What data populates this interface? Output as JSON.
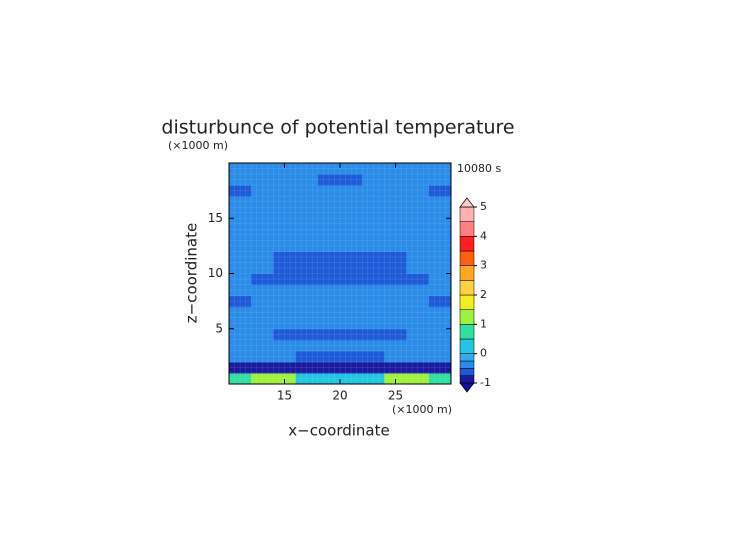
{
  "chart_data": {
    "type": "contour",
    "title": "disturbunce of potential temperature",
    "time_label": "10080 s",
    "x_label": "x−coordinate",
    "y_label": "z−coordinate",
    "x_unit": "(×1000 m)",
    "y_unit": "(×1000 m)",
    "xlim": [
      10,
      30
    ],
    "ylim": [
      0,
      20
    ],
    "xticks": [
      15,
      20,
      25
    ],
    "yticks": [
      5,
      10,
      15
    ],
    "grid": true,
    "z": [
      [
        0.8,
        1.2,
        1.0,
        0.3,
        0.2,
        0.3,
        0.4,
        1.2,
        1.0,
        0.8
      ],
      [
        -0.8,
        -0.8,
        -0.8,
        -0.8,
        -0.8,
        -0.8,
        -0.8,
        -0.8,
        -0.8,
        -0.8
      ],
      [
        -0.4,
        -0.4,
        -0.4,
        -0.55,
        -0.55,
        -0.55,
        -0.55,
        -0.4,
        -0.4,
        -0.4
      ],
      [
        -0.4,
        -0.4,
        -0.4,
        -0.4,
        -0.4,
        -0.4,
        -0.4,
        -0.4,
        -0.4,
        -0.4
      ],
      [
        -0.4,
        -0.4,
        -0.55,
        -0.55,
        -0.55,
        -0.55,
        -0.55,
        -0.55,
        -0.4,
        -0.4
      ],
      [
        -0.3,
        -0.3,
        -0.3,
        -0.3,
        -0.3,
        -0.3,
        -0.3,
        -0.3,
        -0.3,
        -0.3
      ],
      [
        -0.3,
        -0.3,
        -0.3,
        -0.3,
        -0.3,
        -0.3,
        -0.3,
        -0.3,
        -0.3,
        -0.3
      ],
      [
        -0.55,
        -0.3,
        -0.3,
        -0.3,
        -0.3,
        -0.3,
        -0.3,
        -0.3,
        -0.3,
        -0.55
      ],
      [
        -0.3,
        -0.3,
        -0.3,
        -0.3,
        -0.3,
        -0.3,
        -0.3,
        -0.3,
        -0.3,
        -0.3
      ],
      [
        -0.4,
        -0.55,
        -0.55,
        -0.55,
        -0.55,
        -0.55,
        -0.55,
        -0.55,
        -0.55,
        -0.4
      ],
      [
        -0.4,
        -0.4,
        -0.55,
        -0.55,
        -0.55,
        -0.55,
        -0.55,
        -0.55,
        -0.4,
        -0.4
      ],
      [
        -0.3,
        -0.4,
        -0.55,
        -0.55,
        -0.55,
        -0.55,
        -0.55,
        -0.55,
        -0.4,
        -0.3
      ],
      [
        -0.3,
        -0.3,
        -0.4,
        -0.4,
        -0.4,
        -0.4,
        -0.4,
        -0.4,
        -0.3,
        -0.3
      ],
      [
        -0.3,
        -0.3,
        -0.3,
        -0.3,
        -0.3,
        -0.3,
        -0.3,
        -0.3,
        -0.3,
        -0.3
      ],
      [
        -0.3,
        -0.3,
        -0.3,
        -0.3,
        -0.3,
        -0.3,
        -0.3,
        -0.3,
        -0.3,
        -0.3
      ],
      [
        -0.3,
        -0.3,
        -0.3,
        -0.3,
        -0.3,
        -0.3,
        -0.3,
        -0.3,
        -0.3,
        -0.3
      ],
      [
        -0.3,
        -0.3,
        -0.3,
        -0.3,
        -0.3,
        -0.3,
        -0.3,
        -0.3,
        -0.3,
        -0.3
      ],
      [
        -0.55,
        -0.3,
        -0.3,
        -0.3,
        -0.3,
        -0.3,
        -0.3,
        -0.3,
        -0.3,
        -0.55
      ],
      [
        -0.3,
        -0.3,
        -0.3,
        -0.3,
        -0.55,
        -0.55,
        -0.3,
        -0.3,
        -0.3,
        -0.3
      ],
      [
        -0.3,
        -0.3,
        -0.3,
        -0.3,
        -0.3,
        -0.3,
        -0.3,
        -0.3,
        -0.3,
        -0.3
      ]
    ],
    "colorbar": {
      "levels": [
        -1,
        -0.75,
        -0.5,
        -0.25,
        0,
        0.5,
        1,
        1.5,
        2,
        2.5,
        3,
        3.5,
        4,
        4.5,
        5
      ],
      "colors": [
        "#1a1aa0",
        "#1e5ad8",
        "#2a8ce8",
        "#34aaf0",
        "#22c6e0",
        "#30e0a0",
        "#a0f040",
        "#f0f020",
        "#ffd040",
        "#ffa820",
        "#ff6010",
        "#ff1e1e",
        "#ff8080",
        "#ffb0b0"
      ],
      "under_color": "#1010a0",
      "over_color": "#ffc8c8",
      "ticks": [
        -1,
        0,
        1,
        2,
        3,
        4,
        5
      ]
    }
  }
}
